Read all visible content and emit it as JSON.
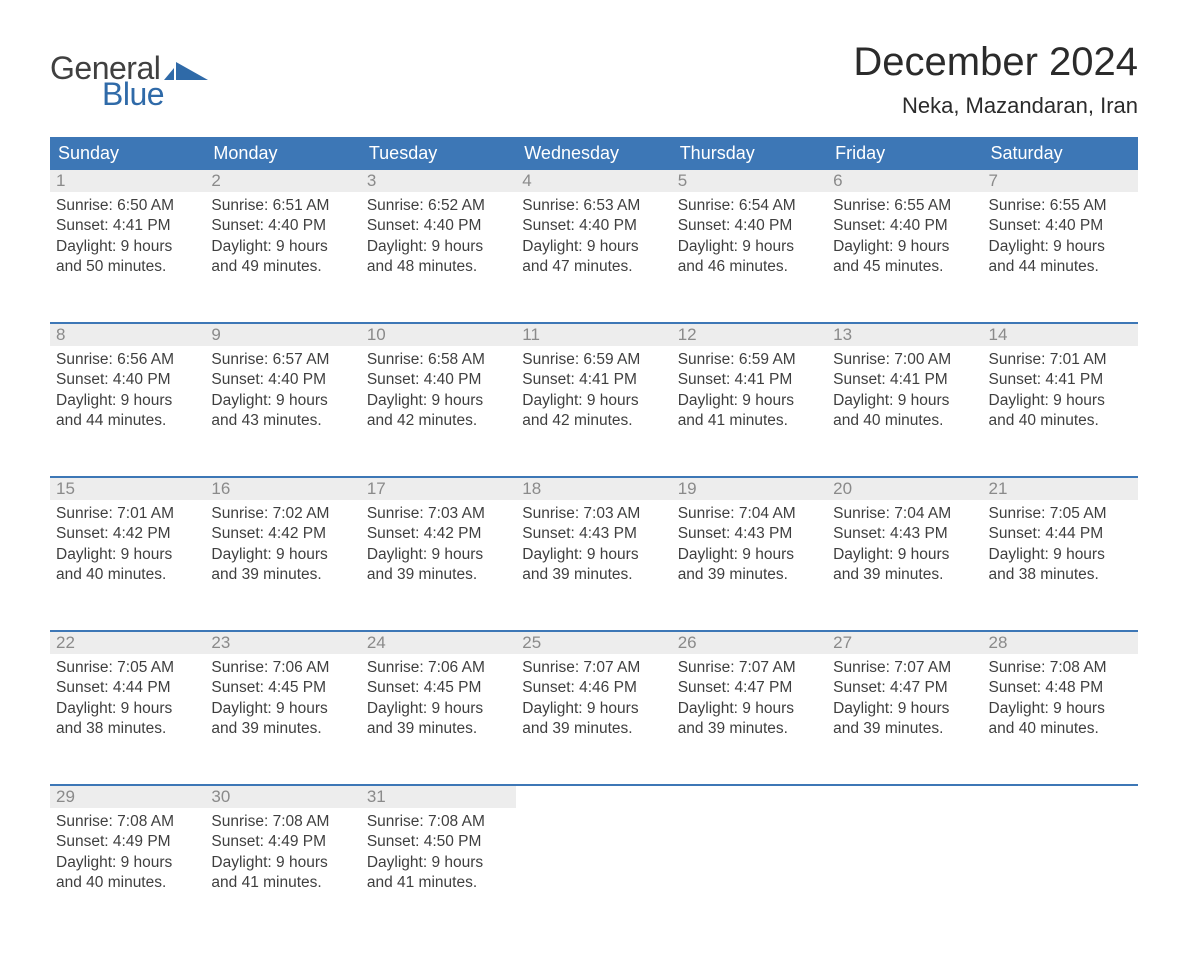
{
  "logo": {
    "text_general": "General",
    "text_blue": "Blue",
    "flag_color": "#2f6aa8"
  },
  "title": "December 2024",
  "location": "Neka, Mazandaran, Iran",
  "colors": {
    "header_bg": "#3d77b6",
    "header_text": "#ffffff",
    "daynum_bg": "#ededed",
    "daynum_text": "#8a8a8a",
    "body_text": "#3f3f3f",
    "week_border": "#3d77b6",
    "page_bg": "#ffffff"
  },
  "typography": {
    "title_fontsize": 40,
    "location_fontsize": 22,
    "weekday_fontsize": 18,
    "daynum_fontsize": 17,
    "body_fontsize": 15.5,
    "font_family": "Arial"
  },
  "weekdays": [
    "Sunday",
    "Monday",
    "Tuesday",
    "Wednesday",
    "Thursday",
    "Friday",
    "Saturday"
  ],
  "weeks": [
    [
      {
        "n": "1",
        "sunrise": "Sunrise: 6:50 AM",
        "sunset": "Sunset: 4:41 PM",
        "d1": "Daylight: 9 hours",
        "d2": "and 50 minutes."
      },
      {
        "n": "2",
        "sunrise": "Sunrise: 6:51 AM",
        "sunset": "Sunset: 4:40 PM",
        "d1": "Daylight: 9 hours",
        "d2": "and 49 minutes."
      },
      {
        "n": "3",
        "sunrise": "Sunrise: 6:52 AM",
        "sunset": "Sunset: 4:40 PM",
        "d1": "Daylight: 9 hours",
        "d2": "and 48 minutes."
      },
      {
        "n": "4",
        "sunrise": "Sunrise: 6:53 AM",
        "sunset": "Sunset: 4:40 PM",
        "d1": "Daylight: 9 hours",
        "d2": "and 47 minutes."
      },
      {
        "n": "5",
        "sunrise": "Sunrise: 6:54 AM",
        "sunset": "Sunset: 4:40 PM",
        "d1": "Daylight: 9 hours",
        "d2": "and 46 minutes."
      },
      {
        "n": "6",
        "sunrise": "Sunrise: 6:55 AM",
        "sunset": "Sunset: 4:40 PM",
        "d1": "Daylight: 9 hours",
        "d2": "and 45 minutes."
      },
      {
        "n": "7",
        "sunrise": "Sunrise: 6:55 AM",
        "sunset": "Sunset: 4:40 PM",
        "d1": "Daylight: 9 hours",
        "d2": "and 44 minutes."
      }
    ],
    [
      {
        "n": "8",
        "sunrise": "Sunrise: 6:56 AM",
        "sunset": "Sunset: 4:40 PM",
        "d1": "Daylight: 9 hours",
        "d2": "and 44 minutes."
      },
      {
        "n": "9",
        "sunrise": "Sunrise: 6:57 AM",
        "sunset": "Sunset: 4:40 PM",
        "d1": "Daylight: 9 hours",
        "d2": "and 43 minutes."
      },
      {
        "n": "10",
        "sunrise": "Sunrise: 6:58 AM",
        "sunset": "Sunset: 4:40 PM",
        "d1": "Daylight: 9 hours",
        "d2": "and 42 minutes."
      },
      {
        "n": "11",
        "sunrise": "Sunrise: 6:59 AM",
        "sunset": "Sunset: 4:41 PM",
        "d1": "Daylight: 9 hours",
        "d2": "and 42 minutes."
      },
      {
        "n": "12",
        "sunrise": "Sunrise: 6:59 AM",
        "sunset": "Sunset: 4:41 PM",
        "d1": "Daylight: 9 hours",
        "d2": "and 41 minutes."
      },
      {
        "n": "13",
        "sunrise": "Sunrise: 7:00 AM",
        "sunset": "Sunset: 4:41 PM",
        "d1": "Daylight: 9 hours",
        "d2": "and 40 minutes."
      },
      {
        "n": "14",
        "sunrise": "Sunrise: 7:01 AM",
        "sunset": "Sunset: 4:41 PM",
        "d1": "Daylight: 9 hours",
        "d2": "and 40 minutes."
      }
    ],
    [
      {
        "n": "15",
        "sunrise": "Sunrise: 7:01 AM",
        "sunset": "Sunset: 4:42 PM",
        "d1": "Daylight: 9 hours",
        "d2": "and 40 minutes."
      },
      {
        "n": "16",
        "sunrise": "Sunrise: 7:02 AM",
        "sunset": "Sunset: 4:42 PM",
        "d1": "Daylight: 9 hours",
        "d2": "and 39 minutes."
      },
      {
        "n": "17",
        "sunrise": "Sunrise: 7:03 AM",
        "sunset": "Sunset: 4:42 PM",
        "d1": "Daylight: 9 hours",
        "d2": "and 39 minutes."
      },
      {
        "n": "18",
        "sunrise": "Sunrise: 7:03 AM",
        "sunset": "Sunset: 4:43 PM",
        "d1": "Daylight: 9 hours",
        "d2": "and 39 minutes."
      },
      {
        "n": "19",
        "sunrise": "Sunrise: 7:04 AM",
        "sunset": "Sunset: 4:43 PM",
        "d1": "Daylight: 9 hours",
        "d2": "and 39 minutes."
      },
      {
        "n": "20",
        "sunrise": "Sunrise: 7:04 AM",
        "sunset": "Sunset: 4:43 PM",
        "d1": "Daylight: 9 hours",
        "d2": "and 39 minutes."
      },
      {
        "n": "21",
        "sunrise": "Sunrise: 7:05 AM",
        "sunset": "Sunset: 4:44 PM",
        "d1": "Daylight: 9 hours",
        "d2": "and 38 minutes."
      }
    ],
    [
      {
        "n": "22",
        "sunrise": "Sunrise: 7:05 AM",
        "sunset": "Sunset: 4:44 PM",
        "d1": "Daylight: 9 hours",
        "d2": "and 38 minutes."
      },
      {
        "n": "23",
        "sunrise": "Sunrise: 7:06 AM",
        "sunset": "Sunset: 4:45 PM",
        "d1": "Daylight: 9 hours",
        "d2": "and 39 minutes."
      },
      {
        "n": "24",
        "sunrise": "Sunrise: 7:06 AM",
        "sunset": "Sunset: 4:45 PM",
        "d1": "Daylight: 9 hours",
        "d2": "and 39 minutes."
      },
      {
        "n": "25",
        "sunrise": "Sunrise: 7:07 AM",
        "sunset": "Sunset: 4:46 PM",
        "d1": "Daylight: 9 hours",
        "d2": "and 39 minutes."
      },
      {
        "n": "26",
        "sunrise": "Sunrise: 7:07 AM",
        "sunset": "Sunset: 4:47 PM",
        "d1": "Daylight: 9 hours",
        "d2": "and 39 minutes."
      },
      {
        "n": "27",
        "sunrise": "Sunrise: 7:07 AM",
        "sunset": "Sunset: 4:47 PM",
        "d1": "Daylight: 9 hours",
        "d2": "and 39 minutes."
      },
      {
        "n": "28",
        "sunrise": "Sunrise: 7:08 AM",
        "sunset": "Sunset: 4:48 PM",
        "d1": "Daylight: 9 hours",
        "d2": "and 40 minutes."
      }
    ],
    [
      {
        "n": "29",
        "sunrise": "Sunrise: 7:08 AM",
        "sunset": "Sunset: 4:49 PM",
        "d1": "Daylight: 9 hours",
        "d2": "and 40 minutes."
      },
      {
        "n": "30",
        "sunrise": "Sunrise: 7:08 AM",
        "sunset": "Sunset: 4:49 PM",
        "d1": "Daylight: 9 hours",
        "d2": "and 41 minutes."
      },
      {
        "n": "31",
        "sunrise": "Sunrise: 7:08 AM",
        "sunset": "Sunset: 4:50 PM",
        "d1": "Daylight: 9 hours",
        "d2": "and 41 minutes."
      },
      null,
      null,
      null,
      null
    ]
  ]
}
